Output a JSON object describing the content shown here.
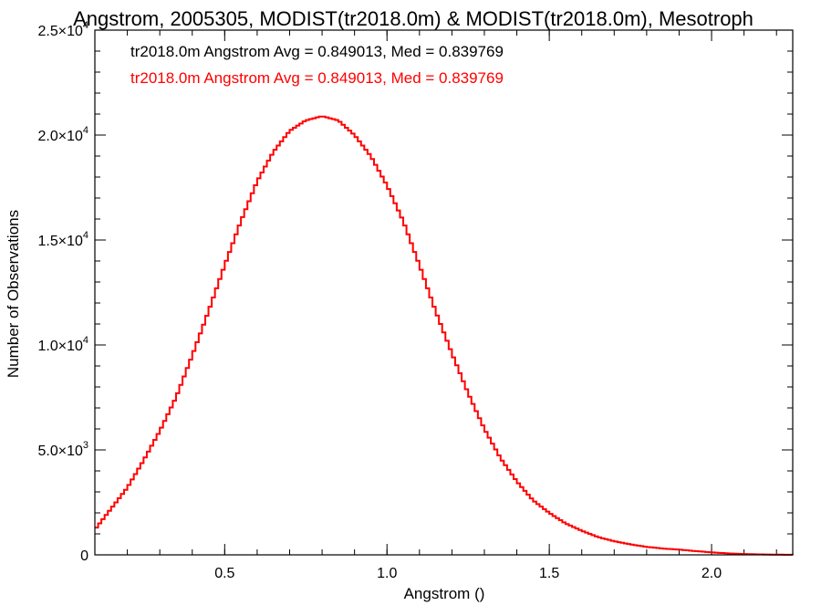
{
  "chart_data": {
    "type": "line",
    "title": "Angstrom, 2005305, MODIST(tr2018.0m) & MODIST(tr2018.0m), Mesotroph",
    "xlabel": "Angstrom ()",
    "ylabel": "Number of Observations",
    "xlim": [
      0.1,
      2.25
    ],
    "ylim": [
      0,
      25000
    ],
    "x_ticks": [
      {
        "value": 0.5,
        "label": "0.5"
      },
      {
        "value": 1.0,
        "label": "1.0"
      },
      {
        "value": 1.5,
        "label": "1.5"
      },
      {
        "value": 2.0,
        "label": "2.0"
      }
    ],
    "y_ticks": [
      {
        "value": 0,
        "mant": "0",
        "exp": ""
      },
      {
        "value": 5000,
        "mant": "5.0×10",
        "exp": "3"
      },
      {
        "value": 10000,
        "mant": "1.0×10",
        "exp": "4"
      },
      {
        "value": 15000,
        "mant": "1.5×10",
        "exp": "4"
      },
      {
        "value": 20000,
        "mant": "2.0×10",
        "exp": "4"
      },
      {
        "value": 25000,
        "mant": "2.5×10",
        "exp": "4"
      }
    ],
    "annotations": [
      {
        "text": "tr2018.0m Angstrom Avg = 0.849013, Med = 0.839769",
        "color": "#000000"
      },
      {
        "text": "tr2018.0m Angstrom Avg = 0.849013, Med = 0.839769",
        "color": "#ff0000"
      }
    ],
    "series": [
      {
        "color": "#ff0000",
        "step": true,
        "x": [
          0.1,
          0.15,
          0.2,
          0.25,
          0.3,
          0.35,
          0.4,
          0.45,
          0.5,
          0.55,
          0.6,
          0.65,
          0.7,
          0.75,
          0.8,
          0.85,
          0.9,
          0.95,
          1.0,
          1.05,
          1.1,
          1.15,
          1.2,
          1.25,
          1.3,
          1.35,
          1.4,
          1.45,
          1.5,
          1.55,
          1.6,
          1.65,
          1.7,
          1.75,
          1.8,
          1.85,
          1.9,
          1.95,
          2.0,
          2.05,
          2.1,
          2.15,
          2.2,
          2.25
        ],
        "y": [
          1200,
          2200,
          3200,
          4500,
          5900,
          7500,
          9500,
          11600,
          13800,
          15900,
          17800,
          19200,
          20200,
          20700,
          20900,
          20700,
          20000,
          19000,
          17600,
          15900,
          13800,
          11600,
          9600,
          7700,
          6000,
          4600,
          3500,
          2600,
          2000,
          1500,
          1150,
          850,
          650,
          500,
          380,
          300,
          250,
          180,
          120,
          70,
          40,
          20,
          10,
          5
        ]
      }
    ]
  }
}
